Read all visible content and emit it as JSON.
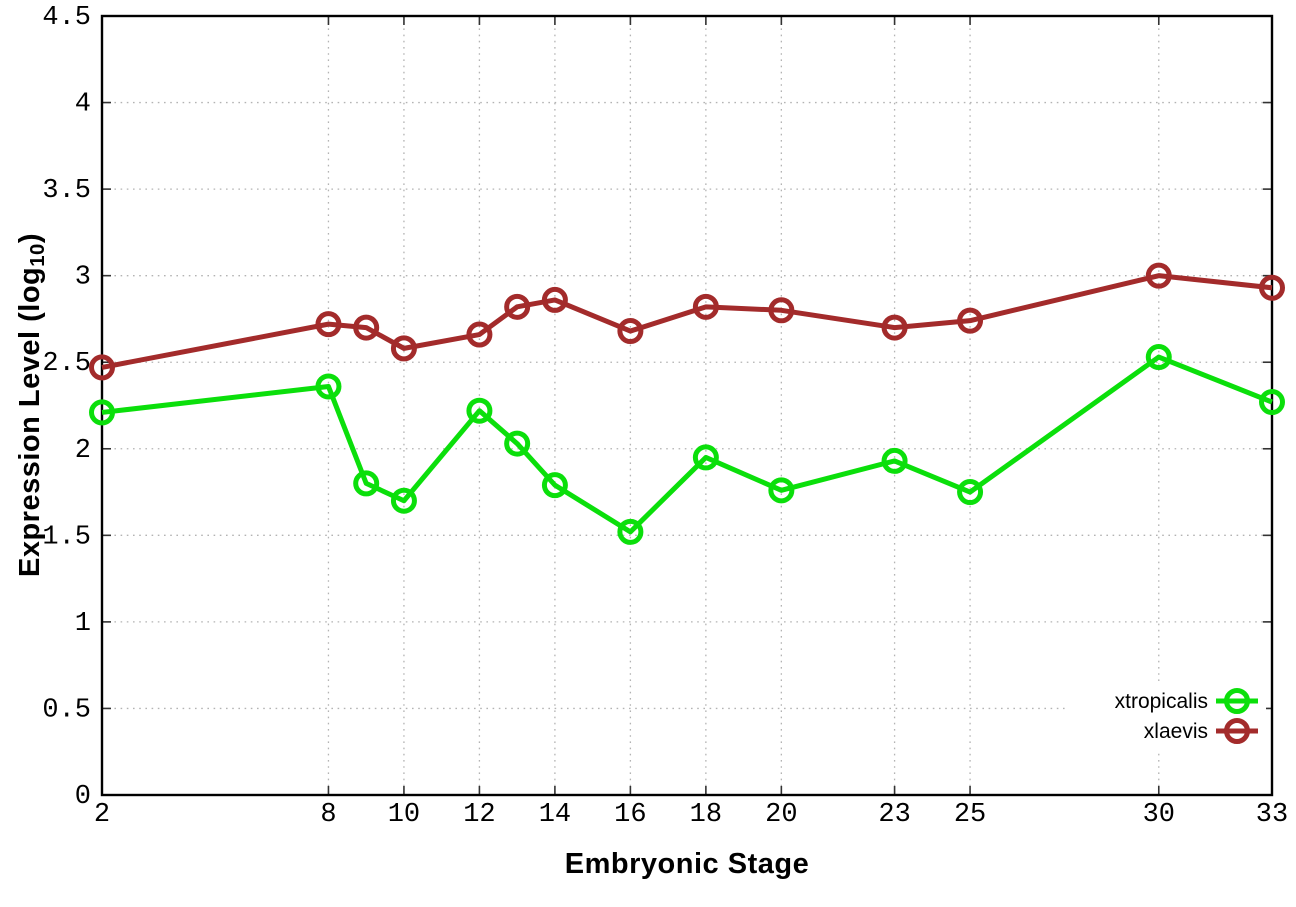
{
  "chart_data": {
    "type": "line",
    "xlabel": "Embryonic Stage",
    "ylabel": "Expression Level (log10)",
    "ylabel_parts": {
      "prefix": "Expression Level (log",
      "subscript": "10",
      "suffix": ")"
    },
    "x": [
      2,
      8,
      9,
      10,
      12,
      13,
      14,
      16,
      18,
      20,
      23,
      25,
      30,
      33
    ],
    "xticks": [
      "2",
      "8",
      "10",
      "12",
      "14",
      "16",
      "18",
      "20",
      "23",
      "25",
      "30",
      "33"
    ],
    "yticks": [
      "0",
      "0.5",
      "1",
      "1.5",
      "2",
      "2.5",
      "3",
      "3.5",
      "4",
      "4.5"
    ],
    "xlim": [
      2,
      33
    ],
    "ylim": [
      0,
      4.5
    ],
    "grid": true,
    "legend_position": "bottom-right-inside",
    "series": [
      {
        "name": "xtropicalis",
        "color": "#0bdf0b",
        "values": [
          2.21,
          2.36,
          1.8,
          1.7,
          2.22,
          2.03,
          1.79,
          1.52,
          1.95,
          1.76,
          1.93,
          1.75,
          2.53,
          2.27
        ]
      },
      {
        "name": "xlaevis",
        "color": "#a32b2b",
        "values": [
          2.47,
          2.72,
          2.7,
          2.58,
          2.66,
          2.82,
          2.86,
          2.68,
          2.82,
          2.8,
          2.7,
          2.74,
          3.0,
          2.93
        ]
      }
    ],
    "style": {
      "grid_color": "#b3b3b3",
      "border_color": "#000000",
      "tick_color": "#333333",
      "background": "#ffffff"
    }
  }
}
